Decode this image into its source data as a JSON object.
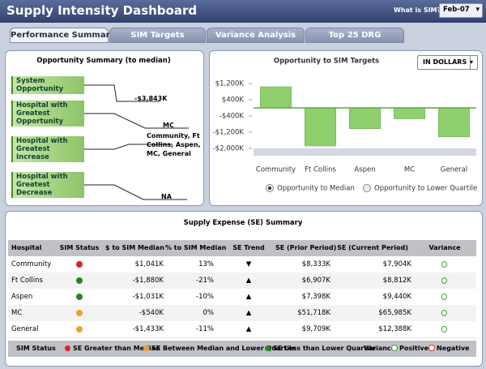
{
  "header": {
    "title": "Supply Intensity Dashboard",
    "help": "What is SIM?",
    "period": "Feb-07"
  },
  "tabs": [
    "Performance Summary",
    "SIM Targets",
    "Variance Analysis",
    "Top 25 DRG"
  ],
  "opportunity_summary": {
    "title": "Opportunity Summary (to median)",
    "items": [
      {
        "label": "System Opportunity",
        "value": "-$3,843K"
      },
      {
        "label": "Hospital with Greatest Opportunity",
        "value": "MC"
      },
      {
        "label": "Hospital with Greatest Increase",
        "value": "Community, Ft Collins, Aspen, MC, General"
      },
      {
        "label": "Hospital with Greatest Decrease",
        "value": "NA"
      }
    ]
  },
  "chart_data": {
    "type": "bar",
    "title": "Opportunity to SIM Targets",
    "unit_selector": "IN DOLLARS",
    "categories": [
      "Community",
      "Ft Collins",
      "Aspen",
      "MC",
      "General"
    ],
    "values": [
      1041,
      -1880,
      -1031,
      -540,
      -1433
    ],
    "color": "#8fcf6e",
    "ylim": [
      -2400,
      1600
    ],
    "yticks": [
      {
        "value": 1200,
        "label": "$1,200K"
      },
      {
        "value": 400,
        "label": "$400K"
      },
      {
        "value": -400,
        "label": "-$400K"
      },
      {
        "value": -1200,
        "label": "-$1,200K"
      },
      {
        "value": -2000,
        "label": "-$2,000K"
      }
    ],
    "grid": false,
    "options": [
      "Opportunity to Median",
      "Opportunity to Lower Quartile"
    ]
  },
  "table": {
    "title": "Supply Expense (SE) Summary",
    "columns": [
      "Hospital",
      "SIM Status",
      "$ to SIM Median",
      "% to SIM Median",
      "SE Trend",
      "SE (Prior Period)",
      "SE (Current Period)",
      "Variance"
    ],
    "rows": [
      {
        "hospital": "Community",
        "status_color": "#e02020",
        "to_median": "$1,041K",
        "pct": "13%",
        "trend": "▼",
        "prior": "$8,333K",
        "current": "$7,904K",
        "variance_color": "#3aa83a"
      },
      {
        "hospital": "Ft Collins",
        "status_color": "#1f8a1f",
        "to_median": "-$1,880K",
        "pct": "-21%",
        "trend": "▲",
        "prior": "$6,907K",
        "current": "$8,812K",
        "variance_color": "#3aa83a"
      },
      {
        "hospital": "Aspen",
        "status_color": "#1f8a1f",
        "to_median": "-$1,031K",
        "pct": "-10%",
        "trend": "▲",
        "prior": "$7,398K",
        "current": "$9,440K",
        "variance_color": "#3aa83a"
      },
      {
        "hospital": "MC",
        "status_color": "#f0a030",
        "to_median": "-$540K",
        "pct": "0%",
        "trend": "▲",
        "prior": "$51,718K",
        "current": "$65,985K",
        "variance_color": "#3aa83a"
      },
      {
        "hospital": "General",
        "status_color": "#f0a030",
        "to_median": "-$1,433K",
        "pct": "-11%",
        "trend": "▲",
        "prior": "$9,709K",
        "current": "$12,388K",
        "variance_color": "#3aa83a"
      }
    ]
  },
  "legend": {
    "title": "SIM Status",
    "items": [
      {
        "label": "SE Greater than Median",
        "color": "#e02020"
      },
      {
        "label": "SE Between Median and Lower Quartile",
        "color": "#f0a030"
      },
      {
        "label": "SE Less than Lower Quartile",
        "color": "#1f8a1f"
      }
    ],
    "variance_title": "Variance",
    "variance_items": [
      {
        "label": "Positive",
        "color": "#3aa83a"
      },
      {
        "label": "Negative",
        "color": "#e03030"
      }
    ]
  }
}
